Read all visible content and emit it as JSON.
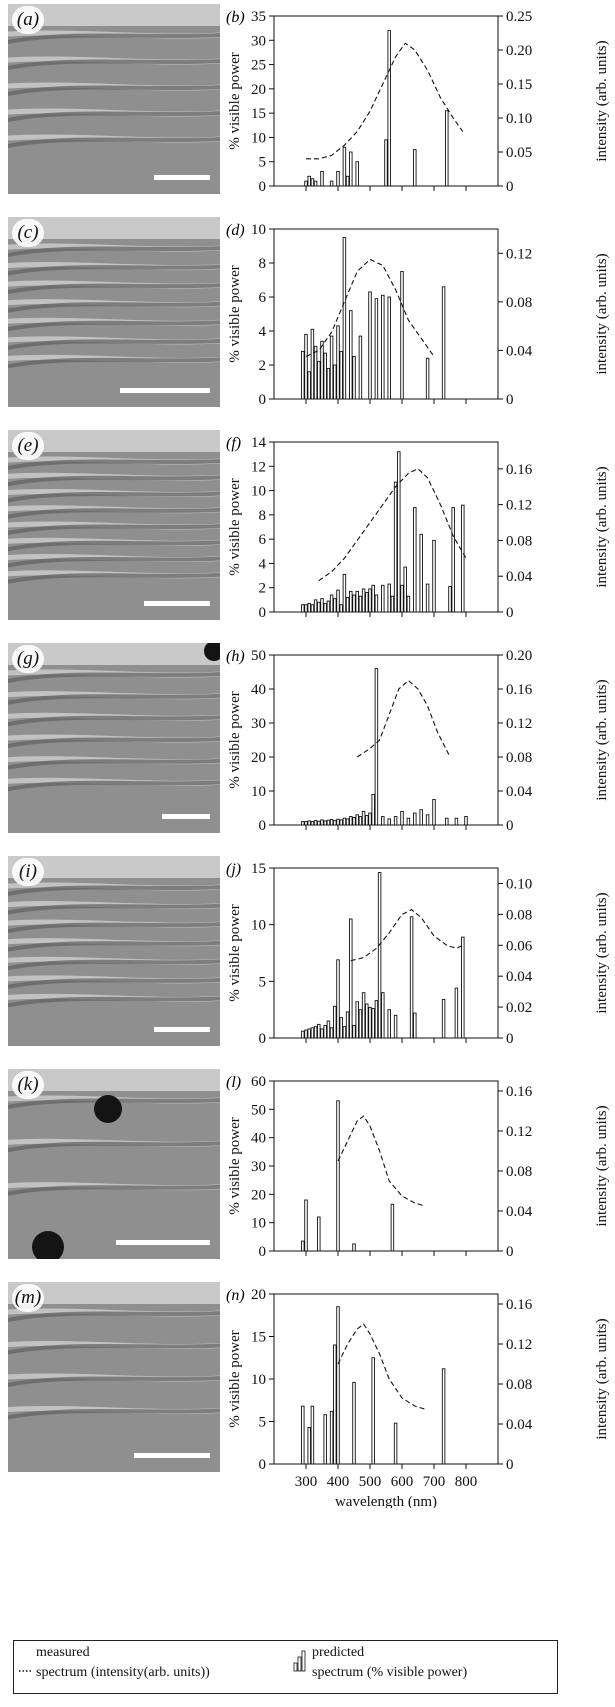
{
  "legend": {
    "measured_title": "measured",
    "measured_sub": "spectrum (intensity(arb. units))",
    "predicted_title": "predicted",
    "predicted_sub": "spectrum (% visible power)"
  },
  "colors": {
    "ink": "#111111",
    "micro_light": "#b5b5b5",
    "micro_dark": "#555555"
  },
  "chart_data": [
    {
      "type": "bar",
      "micrograph_label": "(a)",
      "panel_label": "(b)",
      "ylabel": "% visible power",
      "y2label": "intensity (arb. units)",
      "xlabel": "",
      "ylim": [
        0,
        35
      ],
      "yticks": [
        0,
        5,
        10,
        15,
        20,
        25,
        30,
        35
      ],
      "y2lim": [
        0,
        0.25
      ],
      "y2ticks": [
        0,
        0.05,
        0.1,
        0.15,
        0.2,
        0.25
      ],
      "y2ticklabels": [
        "0",
        "0.05",
        "0.10",
        "0.15",
        "0.20",
        "0.25"
      ],
      "xlim": [
        200,
        900
      ],
      "bars": {
        "x": [
          300,
          310,
          320,
          330,
          350,
          380,
          400,
          420,
          430,
          440,
          460,
          550,
          560,
          640,
          740
        ],
        "values": [
          1,
          2,
          1.5,
          1,
          3,
          1,
          3,
          8,
          2,
          7,
          5,
          9.5,
          32,
          7.5,
          15.5
        ]
      },
      "measured": {
        "x": [
          300,
          340,
          380,
          420,
          460,
          500,
          540,
          580,
          610,
          640,
          680,
          720,
          760,
          790
        ],
        "values": [
          0.04,
          0.04,
          0.045,
          0.06,
          0.08,
          0.11,
          0.15,
          0.19,
          0.21,
          0.2,
          0.17,
          0.13,
          0.1,
          0.08
        ]
      },
      "micro": {
        "bands": 5,
        "scale_bar": true,
        "dark_spots": []
      }
    },
    {
      "type": "bar",
      "micrograph_label": "(c)",
      "panel_label": "(d)",
      "ylabel": "% visible power",
      "y2label": "intensity (arb. units)",
      "xlabel": "",
      "ylim": [
        0,
        10
      ],
      "yticks": [
        0,
        2,
        4,
        6,
        8,
        10
      ],
      "y2lim": [
        0,
        0.14
      ],
      "y2ticks": [
        0,
        0.04,
        0.08,
        0.12
      ],
      "y2ticklabels": [
        "0",
        "0.04",
        "0.08",
        "0.12"
      ],
      "xlim": [
        200,
        900
      ],
      "bars": {
        "x": [
          290,
          300,
          310,
          320,
          330,
          340,
          350,
          360,
          370,
          380,
          390,
          400,
          410,
          420,
          440,
          450,
          470,
          500,
          520,
          540,
          560,
          600,
          680,
          730
        ],
        "values": [
          2.8,
          3.8,
          1.6,
          4.1,
          3.1,
          2.2,
          3.4,
          2.7,
          1.8,
          3.7,
          2.0,
          4.3,
          2.8,
          9.5,
          5.2,
          2.5,
          3.7,
          6.3,
          5.9,
          6.1,
          6.0,
          7.5,
          2.4,
          6.6
        ]
      },
      "measured": {
        "x": [
          300,
          340,
          380,
          420,
          460,
          500,
          540,
          580,
          620,
          660,
          700
        ],
        "values": [
          0.035,
          0.04,
          0.055,
          0.08,
          0.105,
          0.115,
          0.11,
          0.09,
          0.065,
          0.05,
          0.035
        ]
      },
      "micro": {
        "bands": 7,
        "scale_bar": true,
        "dark_spots": []
      }
    },
    {
      "type": "bar",
      "micrograph_label": "(e)",
      "panel_label": "(f)",
      "ylabel": "% visible power",
      "y2label": "intensity (arb. units)",
      "xlabel": "",
      "ylim": [
        0,
        14
      ],
      "yticks": [
        0,
        2,
        4,
        6,
        8,
        10,
        12,
        14
      ],
      "y2lim": [
        0,
        0.19
      ],
      "y2ticks": [
        0,
        0.04,
        0.08,
        0.12,
        0.16
      ],
      "y2ticklabels": [
        "0",
        "0.04",
        "0.08",
        "0.12",
        "0.16"
      ],
      "xlim": [
        200,
        900
      ],
      "bars": {
        "x": [
          290,
          300,
          310,
          320,
          330,
          340,
          350,
          360,
          370,
          380,
          390,
          400,
          410,
          420,
          430,
          440,
          450,
          460,
          470,
          480,
          490,
          500,
          510,
          520,
          540,
          560,
          570,
          580,
          590,
          600,
          610,
          620,
          640,
          660,
          680,
          700,
          750,
          760,
          790
        ],
        "values": [
          0.6,
          0.6,
          0.7,
          0.6,
          1.0,
          0.8,
          1.1,
          0.7,
          0.9,
          1.4,
          1.1,
          1.8,
          0.6,
          3.1,
          1.2,
          1.7,
          1.4,
          1.7,
          1.3,
          1.9,
          1.6,
          1.9,
          2.2,
          1.4,
          2.2,
          2.3,
          1.3,
          10.7,
          13.2,
          2.2,
          3.7,
          1.3,
          8.6,
          6.4,
          2.3,
          5.9,
          2.1,
          8.6,
          8.8
        ]
      },
      "measured": {
        "x": [
          340,
          380,
          420,
          460,
          500,
          540,
          580,
          620,
          650,
          680,
          720,
          760,
          800
        ],
        "values": [
          0.035,
          0.045,
          0.06,
          0.08,
          0.1,
          0.12,
          0.14,
          0.155,
          0.16,
          0.15,
          0.12,
          0.085,
          0.06
        ]
      },
      "micro": {
        "bands": 8,
        "scale_bar": true,
        "dark_spots": []
      }
    },
    {
      "type": "bar",
      "micrograph_label": "(g)",
      "panel_label": "(h)",
      "ylabel": "% visible power",
      "y2label": "intensity (arb. units)",
      "xlabel": "",
      "ylim": [
        0,
        50
      ],
      "yticks": [
        0,
        10,
        20,
        30,
        40,
        50
      ],
      "y2lim": [
        0,
        0.2
      ],
      "y2ticks": [
        0,
        0.04,
        0.08,
        0.12,
        0.16,
        0.2
      ],
      "y2ticklabels": [
        "0",
        "0.04",
        "0.08",
        "0.12",
        "0.16",
        "0.20"
      ],
      "xlim": [
        200,
        900
      ],
      "bars": {
        "x": [
          290,
          300,
          310,
          320,
          330,
          340,
          350,
          360,
          370,
          380,
          390,
          400,
          410,
          420,
          430,
          440,
          450,
          460,
          470,
          480,
          490,
          500,
          510,
          520,
          540,
          560,
          580,
          600,
          620,
          640,
          660,
          680,
          700,
          740,
          770,
          800
        ],
        "values": [
          1,
          1,
          1.2,
          1,
          1.3,
          1.1,
          1.5,
          1.2,
          1.4,
          1.6,
          1.3,
          1.7,
          1.5,
          2,
          1.8,
          2.5,
          2.2,
          3,
          2.5,
          4,
          2.8,
          3.5,
          9,
          46,
          2.5,
          1.8,
          2.5,
          4,
          2,
          3.5,
          4.5,
          3,
          7.5,
          2,
          2,
          2.5
        ]
      },
      "measured": {
        "x": [
          460,
          500,
          530,
          560,
          590,
          620,
          650,
          680,
          710,
          750
        ],
        "values": [
          0.08,
          0.09,
          0.1,
          0.13,
          0.16,
          0.17,
          0.16,
          0.14,
          0.11,
          0.08
        ]
      },
      "micro": {
        "bands": 6,
        "scale_bar": true,
        "dark_spots": [
          [
            206,
            8,
            10
          ]
        ]
      }
    },
    {
      "type": "bar",
      "micrograph_label": "(i)",
      "panel_label": "(j)",
      "ylabel": "% visible power",
      "y2label": "intensity (arb. units)",
      "xlabel": "",
      "ylim": [
        0,
        15
      ],
      "yticks": [
        0,
        5,
        10,
        15
      ],
      "y2lim": [
        0,
        0.11
      ],
      "y2ticks": [
        0,
        0.02,
        0.04,
        0.06,
        0.08,
        0.1
      ],
      "y2ticklabels": [
        "0",
        "0.02",
        "0.04",
        "0.06",
        "0.08",
        "0.10"
      ],
      "xlim": [
        200,
        900
      ],
      "bars": {
        "x": [
          290,
          300,
          310,
          320,
          330,
          340,
          350,
          360,
          370,
          380,
          390,
          400,
          410,
          420,
          430,
          440,
          450,
          460,
          470,
          480,
          490,
          500,
          510,
          520,
          530,
          540,
          560,
          580,
          630,
          640,
          730,
          770,
          790
        ],
        "values": [
          0.6,
          0.7,
          0.8,
          0.9,
          1.0,
          1.2,
          0.8,
          1.1,
          1.5,
          0.9,
          2.8,
          6.9,
          1.8,
          1.0,
          2.3,
          10.5,
          1.1,
          3.2,
          2.5,
          4.0,
          3.0,
          2.7,
          2.6,
          3.3,
          14.6,
          4.0,
          2.5,
          2.0,
          10.7,
          2.2,
          3.4,
          4.4,
          8.9
        ]
      },
      "measured": {
        "x": [
          440,
          480,
          520,
          560,
          600,
          630,
          660,
          700,
          740,
          770,
          790
        ],
        "values": [
          0.05,
          0.052,
          0.058,
          0.068,
          0.08,
          0.083,
          0.078,
          0.066,
          0.06,
          0.058,
          0.06
        ]
      },
      "micro": {
        "bands": 7,
        "scale_bar": true,
        "dark_spots": []
      }
    },
    {
      "type": "bar",
      "micrograph_label": "(k)",
      "panel_label": "(l)",
      "ylabel": "% visible power",
      "y2label": "intensity (arb. units)",
      "xlabel": "",
      "ylim": [
        0,
        60
      ],
      "yticks": [
        0,
        10,
        20,
        30,
        40,
        50,
        60
      ],
      "y2lim": [
        0,
        0.17
      ],
      "y2ticks": [
        0,
        0.04,
        0.08,
        0.12,
        0.16
      ],
      "y2ticklabels": [
        "0",
        "0.04",
        "0.08",
        "0.12",
        "0.16"
      ],
      "xlim": [
        200,
        900
      ],
      "bars": {
        "x": [
          290,
          300,
          340,
          400,
          450,
          570
        ],
        "values": [
          3.5,
          18,
          12,
          53,
          2.5,
          16.5
        ]
      },
      "measured": {
        "x": [
          400,
          430,
          460,
          480,
          500,
          530,
          560,
          600,
          640,
          670
        ],
        "values": [
          0.09,
          0.11,
          0.13,
          0.135,
          0.125,
          0.1,
          0.07,
          0.055,
          0.048,
          0.045
        ]
      },
      "micro": {
        "bands": 3,
        "scale_bar": true,
        "dark_spots": [
          [
            100,
            40,
            14
          ],
          [
            40,
            178,
            16
          ]
        ]
      }
    },
    {
      "type": "bar",
      "micrograph_label": "(m)",
      "panel_label": "(n)",
      "ylabel": "% visible power",
      "y2label": "intensity (arb. units)",
      "xlabel": "wavelength (nm)",
      "ylim": [
        0,
        20
      ],
      "yticks": [
        0,
        5,
        10,
        15,
        20
      ],
      "y2lim": [
        0,
        0.17
      ],
      "y2ticks": [
        0,
        0.04,
        0.08,
        0.12,
        0.16
      ],
      "y2ticklabels": [
        "0",
        "0.04",
        "0.08",
        "0.12",
        "0.16"
      ],
      "xlim": [
        200,
        900
      ],
      "xticks": [
        300,
        400,
        500,
        600,
        700,
        800
      ],
      "bars": {
        "x": [
          290,
          310,
          320,
          360,
          380,
          390,
          400,
          450,
          510,
          580,
          730
        ],
        "values": [
          6.8,
          4.3,
          6.8,
          5.8,
          6.2,
          14,
          18.5,
          9.6,
          12.5,
          4.8,
          11.2
        ]
      },
      "measured": {
        "x": [
          400,
          430,
          460,
          480,
          500,
          530,
          560,
          600,
          640,
          670
        ],
        "values": [
          0.1,
          0.12,
          0.135,
          0.14,
          0.13,
          0.11,
          0.085,
          0.066,
          0.058,
          0.055
        ]
      },
      "micro": {
        "bands": 4,
        "scale_bar": true,
        "dark_spots": []
      }
    }
  ]
}
